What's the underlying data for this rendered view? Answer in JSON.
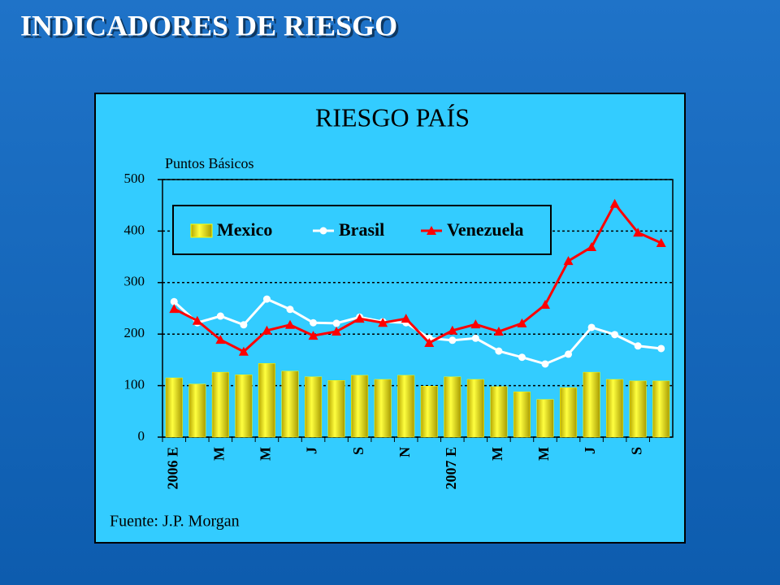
{
  "page_title": "INDICADORES DE RIESGO",
  "chart_data": {
    "type": "bar-line",
    "title": "RIESGO PAÍS",
    "y_label": "Puntos Básicos",
    "source": "Fuente: J.P. Morgan",
    "categories": [
      "2006 E",
      null,
      "M",
      null,
      "M",
      null,
      "J",
      null,
      "S",
      null,
      "N",
      null,
      "2007 E",
      null,
      "M",
      null,
      "M",
      null,
      "J",
      null,
      "S",
      null
    ],
    "series": [
      {
        "name": "Mexico",
        "kind": "bar",
        "color": "#ffff00",
        "values": [
          115,
          103,
          126,
          121,
          143,
          128,
          117,
          110,
          120,
          112,
          120,
          99,
          117,
          112,
          98,
          88,
          73,
          96,
          126,
          112,
          109,
          109
        ]
      },
      {
        "name": "Brasil",
        "kind": "line",
        "color": "#ffffff",
        "values": [
          263,
          222,
          235,
          218,
          268,
          248,
          222,
          221,
          233,
          224,
          222,
          192,
          188,
          192,
          167,
          155,
          142,
          161,
          213,
          199,
          177,
          172
        ]
      },
      {
        "name": "Venezuela",
        "kind": "line",
        "color": "#ff0000",
        "values": [
          249,
          226,
          189,
          166,
          207,
          218,
          197,
          205,
          230,
          222,
          230,
          183,
          207,
          219,
          205,
          221,
          257,
          342,
          369,
          453,
          397,
          377
        ]
      }
    ],
    "ylim": [
      0,
      500
    ],
    "yticks": [
      0,
      100,
      200,
      300,
      400,
      500
    ],
    "grid": true
  }
}
